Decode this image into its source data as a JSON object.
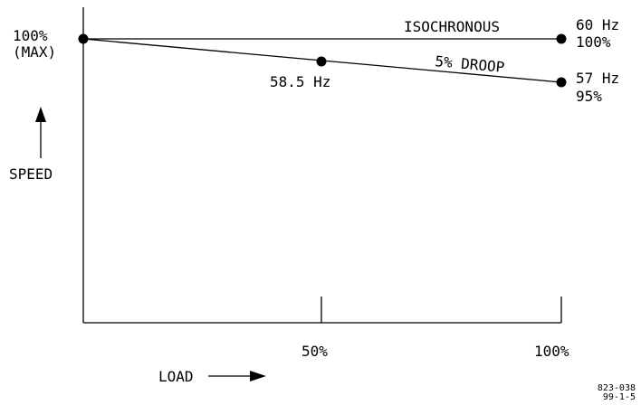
{
  "y_axis": {
    "top_label": "100%",
    "top_sub_label": "(MAX)",
    "label": "SPEED"
  },
  "x_axis": {
    "label": "LOAD",
    "ticks": [
      "50%",
      "100%"
    ]
  },
  "isochronous": {
    "label": "ISOCHRONOUS",
    "end_freq": "60 Hz",
    "end_pct": "100%"
  },
  "droop": {
    "label": "5% DROOP",
    "mid_freq": "58.5 Hz",
    "end_freq": "57 Hz",
    "end_pct": "95%"
  },
  "figure_code": {
    "line1": "823-038",
    "line2": "99-1-5"
  }
}
